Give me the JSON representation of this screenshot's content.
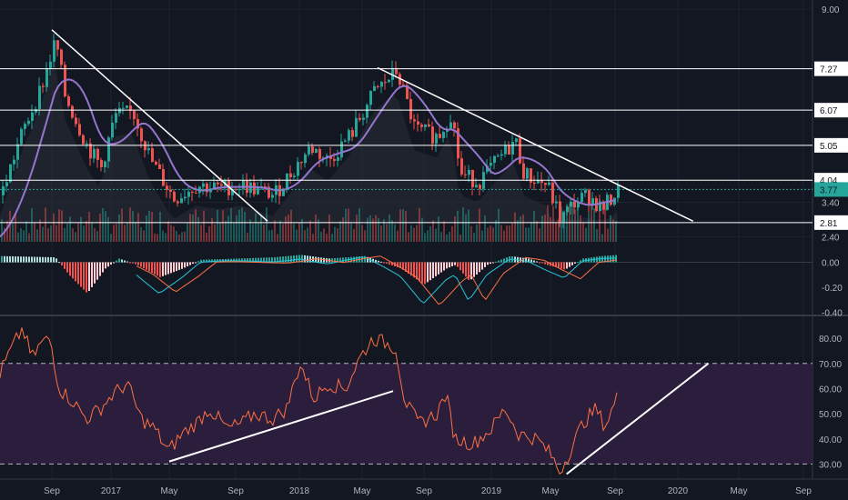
{
  "chart_data": [
    {
      "type": "candlestick",
      "pane": "price",
      "ylim": [
        2.2,
        9.0
      ],
      "y_ticks": [
        "9.00",
        "7.27",
        "6.07",
        "5.05",
        "4.04",
        "3.77",
        "3.40",
        "2.81",
        "2.40"
      ],
      "horizontal_levels": [
        7.27,
        6.07,
        5.05,
        4.04,
        2.81
      ],
      "current_price": 3.77,
      "current_label": "3.77",
      "volume_visible": true,
      "moving_average_color": "#9575cd",
      "trendlines": [
        {
          "from": [
            "2016-09",
            8.4
          ],
          "to": [
            "2017-11",
            2.85
          ]
        },
        {
          "from": [
            "2018-06",
            7.3
          ],
          "to": [
            "2020-02",
            2.85
          ]
        }
      ],
      "colors": {
        "up": "#26a69a",
        "down": "#ef5350",
        "level_line": "#ffffff",
        "trendline": "#ffffff",
        "tag_bg": "#26a69a"
      }
    },
    {
      "type": "histogram",
      "pane": "macd",
      "ylim": [
        -0.42,
        0.15
      ],
      "y_ticks": [
        "0.00",
        "-0.20",
        "-0.40"
      ],
      "colors": {
        "hist_up": "#26a69a",
        "hist_down": "#ef5350",
        "hist_pale": "#ffcdd2",
        "macd_line": "#26c6da",
        "signal_line": "#ff7043"
      }
    },
    {
      "type": "line",
      "pane": "rsi",
      "ylim": [
        24,
        88
      ],
      "y_ticks": [
        "80.00",
        "70.00",
        "60.00",
        "50.00",
        "40.00",
        "30.00"
      ],
      "band": [
        30,
        70
      ],
      "trendlines": [
        {
          "from": [
            "2017-05",
            31
          ],
          "to": [
            "2018-07",
            59
          ]
        },
        {
          "from": [
            "2019-06",
            26
          ],
          "to": [
            "2020-03",
            70
          ]
        }
      ],
      "colors": {
        "line": "#ff7043",
        "band": "#2a1e3c",
        "trendline": "#ffffff"
      }
    }
  ],
  "x_axis": {
    "labels": [
      "Sep",
      "2017",
      "May",
      "Sep",
      "2018",
      "May",
      "Sep",
      "2019",
      "May",
      "Sep",
      "2020",
      "May",
      "Sep"
    ]
  }
}
